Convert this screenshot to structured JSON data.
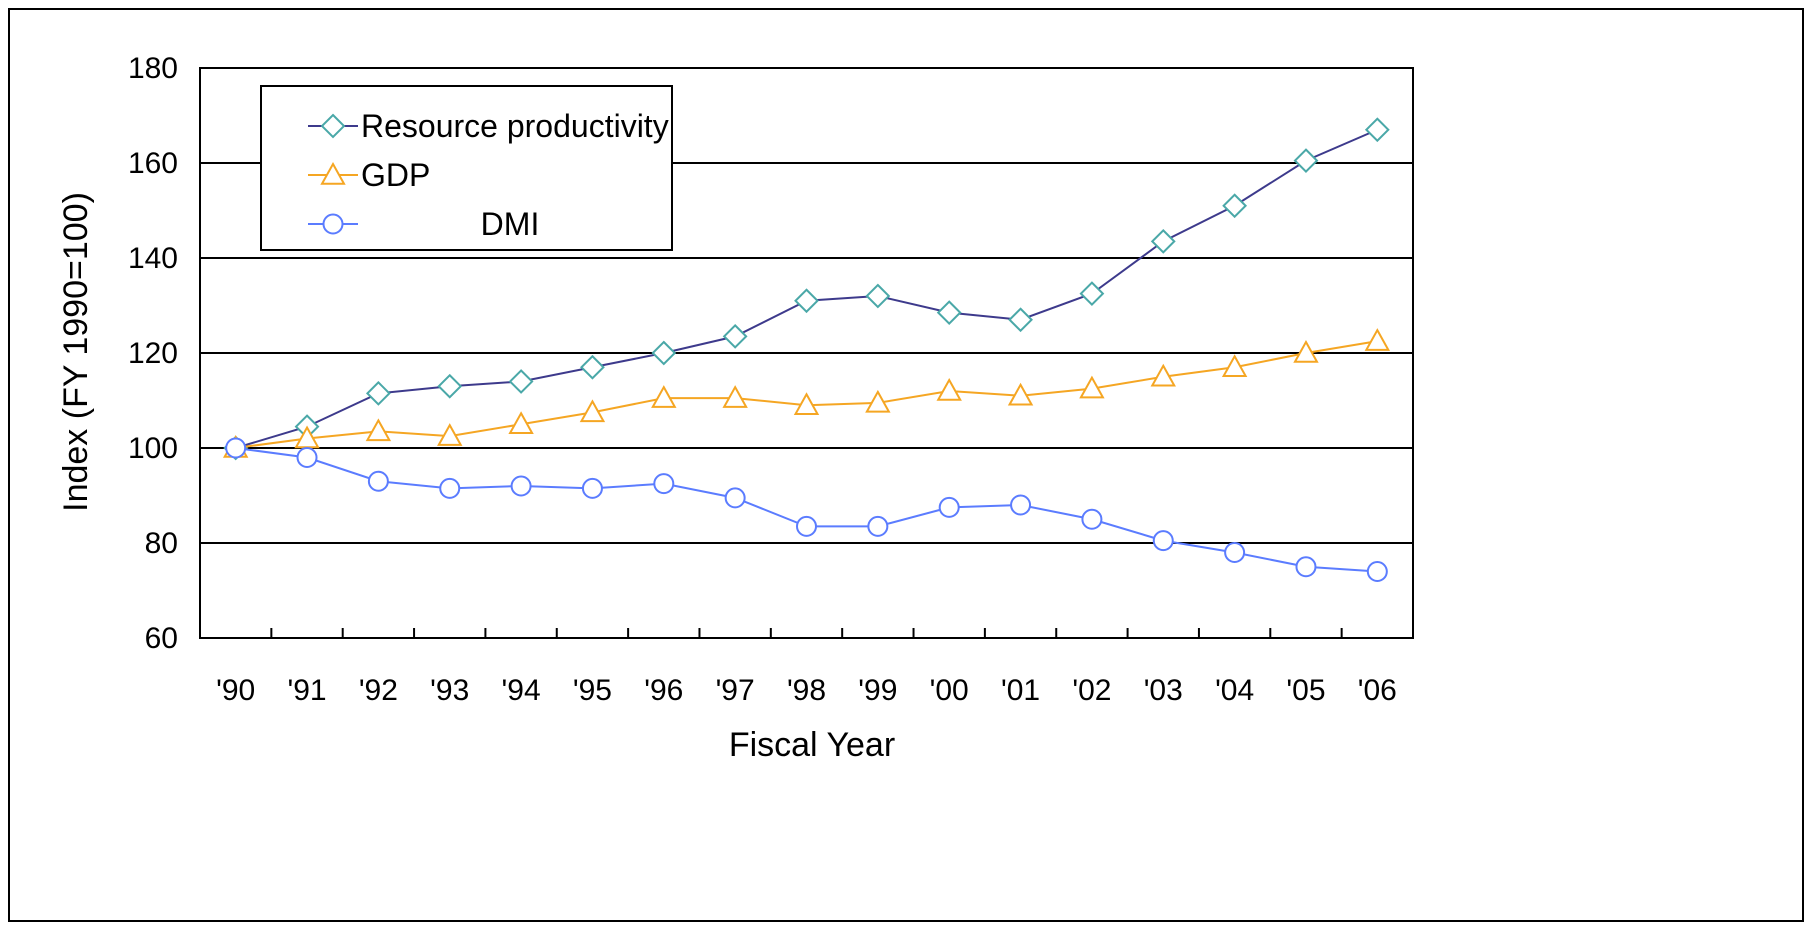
{
  "chart_data": {
    "type": "line",
    "title": "",
    "xlabel": "Fiscal Year",
    "ylabel": "Index (FY 1990=100)",
    "categories": [
      "'90",
      "'91",
      "'92",
      "'93",
      "'94",
      "'95",
      "'96",
      "'97",
      "'98",
      "'99",
      "'00",
      "'01",
      "'02",
      "'03",
      "'04",
      "'05",
      "'06"
    ],
    "ylim": [
      60,
      180
    ],
    "yticks": [
      60,
      80,
      100,
      120,
      140,
      160,
      180
    ],
    "grid": "horizontal",
    "legend_position": "top-left",
    "series": [
      {
        "name": "Resource productivity",
        "marker": "diamond",
        "line_color": "#3d3a8c",
        "marker_color": "#4aa8a8",
        "values": [
          100,
          104.5,
          111.5,
          113,
          114,
          117,
          120,
          123.5,
          131,
          132,
          128.5,
          127,
          132.5,
          143.5,
          151,
          160.5,
          167
        ]
      },
      {
        "name": "GDP",
        "marker": "triangle",
        "line_color": "#f5a623",
        "marker_color": "#f5a623",
        "values": [
          100,
          102,
          103.5,
          102.5,
          105,
          107.5,
          110.5,
          110.5,
          109,
          109.5,
          112,
          111,
          112.5,
          115,
          117,
          120,
          122.5
        ]
      },
      {
        "name": "DMI",
        "marker": "circle",
        "line_color": "#5b7cff",
        "marker_color": "#5b7cff",
        "values": [
          100,
          98,
          93,
          91.5,
          92,
          91.5,
          92.5,
          89.5,
          83.5,
          83.5,
          87.5,
          88,
          85,
          80.5,
          78,
          75,
          74
        ]
      }
    ]
  }
}
